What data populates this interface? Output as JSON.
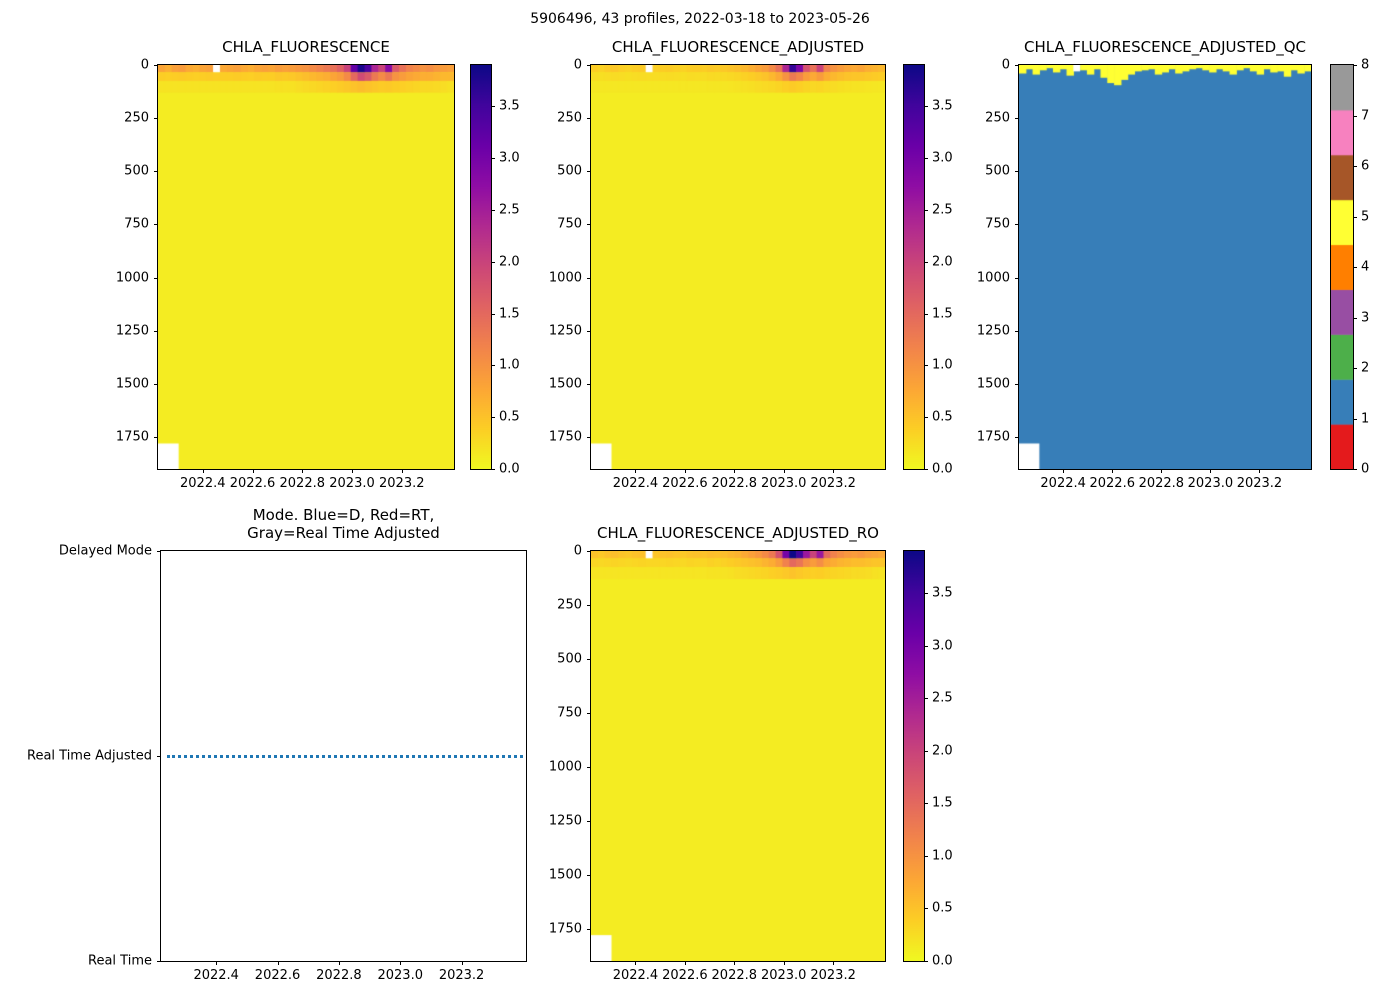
{
  "figure": {
    "title": "5906496, 43 profiles, 2022-03-18 to 2023-05-26"
  },
  "colors": {
    "background": "#ffffff",
    "plasma_r_stops": [
      "#f0f921",
      "#fcce25",
      "#fca636",
      "#f2844b",
      "#e16462",
      "#cc4778",
      "#b12a90",
      "#8f0da4",
      "#6a00a8",
      "#41049d",
      "#0d0887"
    ],
    "set1": [
      "#e41a1c",
      "#377eb8",
      "#4daf4a",
      "#984ea3",
      "#ff7f00",
      "#ffff33",
      "#a65628",
      "#f781bf",
      "#999999"
    ],
    "mode_line": "#1f77b4"
  },
  "chart_data": [
    {
      "id": "chla_fluorescence",
      "type": "heatmap",
      "title": "CHLA_FLUORESCENCE",
      "xlabel": "",
      "ylabel": "",
      "x_range": [
        2022.22,
        2023.41
      ],
      "x_tick_values": [
        2022.4,
        2022.6,
        2022.8,
        2023.0,
        2023.2
      ],
      "x_tick_labels": [
        "2022.4",
        "2022.6",
        "2022.8",
        "2023.0",
        "2023.2"
      ],
      "y_range": [
        0,
        1900
      ],
      "y_tick_values": [
        0,
        250,
        500,
        750,
        1000,
        1250,
        1500,
        1750
      ],
      "colorbar": {
        "style": "gradient",
        "cmap": "plasma_r",
        "vmin": 0,
        "vmax": 3.9,
        "tick_values": [
          0,
          0.5,
          1.0,
          1.5,
          2.0,
          2.5,
          3.0,
          3.5
        ],
        "tick_labels": [
          "0.0",
          "0.5",
          "1.0",
          "1.5",
          "2.0",
          "2.5",
          "3.0",
          "3.5"
        ]
      },
      "n_profiles": 43,
      "base_value": 0.12,
      "bands": {
        "depth_ranges": [
          [
            0,
            35
          ],
          [
            35,
            75
          ],
          [
            75,
            130
          ]
        ],
        "values": [
          [
            0.8,
            0.7,
            0.85,
            0.9,
            0.75,
            0.7,
            0.8,
            0.85,
            null,
            0.75,
            0.8,
            0.85,
            0.75,
            0.7,
            0.8,
            0.85,
            0.8,
            0.9,
            0.85,
            0.9,
            0.95,
            1.0,
            1.1,
            1.2,
            1.3,
            1.4,
            1.6,
            2.0,
            3.2,
            3.8,
            3.4,
            2.4,
            2.0,
            2.8,
            1.7,
            1.4,
            1.2,
            1.1,
            1.0,
            1.05,
            0.95,
            0.9,
            0.85
          ],
          [
            0.4,
            0.38,
            0.4,
            0.42,
            0.4,
            0.38,
            0.4,
            0.42,
            0.4,
            0.4,
            0.4,
            0.42,
            0.4,
            0.38,
            0.42,
            0.4,
            0.4,
            0.45,
            0.43,
            0.45,
            0.5,
            0.55,
            0.6,
            0.65,
            0.7,
            0.8,
            0.9,
            1.1,
            1.5,
            1.9,
            1.7,
            1.3,
            1.1,
            1.3,
            1.0,
            0.9,
            0.8,
            0.75,
            0.7,
            0.7,
            0.65,
            0.6,
            0.6
          ],
          [
            0.2,
            0.2,
            0.2,
            0.2,
            0.2,
            0.2,
            0.2,
            0.2,
            0.2,
            0.2,
            0.2,
            0.2,
            0.2,
            0.2,
            0.2,
            0.2,
            0.2,
            0.22,
            0.22,
            0.22,
            0.25,
            0.28,
            0.3,
            0.33,
            0.35,
            0.38,
            0.42,
            0.46,
            0.5,
            0.55,
            0.5,
            0.46,
            0.42,
            0.44,
            0.4,
            0.38,
            0.35,
            0.33,
            0.3,
            0.3,
            0.28,
            0.25,
            0.22
          ]
        ]
      },
      "missing": {
        "bottom_left": {
          "profiles_to": 2,
          "depth_from": 1780
        }
      }
    },
    {
      "id": "chla_fluorescence_adjusted",
      "type": "heatmap",
      "title": "CHLA_FLUORESCENCE_ADJUSTED",
      "xlabel": "",
      "ylabel": "",
      "x_range": [
        2022.22,
        2023.41
      ],
      "x_tick_values": [
        2022.4,
        2022.6,
        2022.8,
        2023.0,
        2023.2
      ],
      "x_tick_labels": [
        "2022.4",
        "2022.6",
        "2022.8",
        "2023.0",
        "2023.2"
      ],
      "y_range": [
        0,
        1900
      ],
      "y_tick_values": [
        0,
        250,
        500,
        750,
        1000,
        1250,
        1500,
        1750
      ],
      "colorbar": {
        "style": "gradient",
        "cmap": "plasma_r",
        "vmin": 0,
        "vmax": 3.9,
        "tick_values": [
          0,
          0.5,
          1.0,
          1.5,
          2.0,
          2.5,
          3.0,
          3.5
        ],
        "tick_labels": [
          "0.0",
          "0.5",
          "1.0",
          "1.5",
          "2.0",
          "2.5",
          "3.0",
          "3.5"
        ]
      },
      "n_profiles": 43,
      "base_value": 0.12,
      "bands": {
        "depth_ranges": [
          [
            0,
            35
          ],
          [
            35,
            75
          ],
          [
            75,
            130
          ]
        ],
        "values": [
          [
            0.4,
            0.35,
            0.42,
            0.45,
            0.38,
            0.35,
            0.4,
            0.42,
            null,
            0.38,
            0.4,
            0.42,
            0.38,
            0.35,
            0.4,
            0.42,
            0.4,
            0.45,
            0.43,
            0.45,
            0.5,
            0.55,
            0.6,
            0.7,
            0.8,
            0.9,
            1.1,
            1.4,
            2.4,
            3.6,
            2.9,
            1.8,
            1.4,
            2.0,
            1.2,
            1.0,
            0.9,
            0.8,
            0.75,
            0.8,
            0.7,
            0.65,
            0.6
          ],
          [
            0.25,
            0.24,
            0.25,
            0.26,
            0.25,
            0.24,
            0.25,
            0.26,
            0.25,
            0.25,
            0.25,
            0.26,
            0.25,
            0.24,
            0.26,
            0.25,
            0.25,
            0.28,
            0.27,
            0.28,
            0.3,
            0.33,
            0.36,
            0.4,
            0.45,
            0.5,
            0.6,
            0.75,
            1.0,
            1.3,
            1.15,
            0.9,
            0.75,
            0.9,
            0.7,
            0.6,
            0.55,
            0.5,
            0.48,
            0.48,
            0.45,
            0.42,
            0.4
          ],
          [
            0.16,
            0.16,
            0.16,
            0.16,
            0.16,
            0.16,
            0.16,
            0.16,
            0.16,
            0.16,
            0.16,
            0.16,
            0.16,
            0.16,
            0.16,
            0.16,
            0.16,
            0.17,
            0.17,
            0.17,
            0.18,
            0.2,
            0.22,
            0.24,
            0.26,
            0.28,
            0.3,
            0.34,
            0.38,
            0.42,
            0.38,
            0.34,
            0.3,
            0.32,
            0.28,
            0.26,
            0.24,
            0.22,
            0.2,
            0.2,
            0.18,
            0.17,
            0.16
          ]
        ]
      },
      "missing": {
        "bottom_left": {
          "profiles_to": 2,
          "depth_from": 1780
        }
      }
    },
    {
      "id": "chla_fluorescence_adjusted_qc",
      "type": "heatmap_qc",
      "title": "CHLA_FLUORESCENCE_ADJUSTED_QC",
      "xlabel": "",
      "ylabel": "",
      "x_range": [
        2022.22,
        2023.41
      ],
      "x_tick_values": [
        2022.4,
        2022.6,
        2022.8,
        2023.0,
        2023.2
      ],
      "x_tick_labels": [
        "2022.4",
        "2022.6",
        "2022.8",
        "2023.0",
        "2023.2"
      ],
      "y_range": [
        0,
        1900
      ],
      "y_tick_values": [
        0,
        250,
        500,
        750,
        1000,
        1250,
        1500,
        1750
      ],
      "colorbar": {
        "style": "discrete",
        "cmap": "Set1",
        "n_segments": 9,
        "tick_values": [
          0,
          1,
          2,
          3,
          4,
          5,
          6,
          7,
          8
        ],
        "tick_labels": [
          "0",
          "1",
          "2",
          "3",
          "4",
          "5",
          "6",
          "7",
          "8"
        ]
      },
      "n_profiles": 43,
      "body_qc": 1,
      "surface_qc": 5,
      "surface_depths": [
        40,
        20,
        45,
        25,
        15,
        35,
        20,
        50,
        0,
        25,
        45,
        20,
        60,
        85,
        95,
        70,
        45,
        30,
        25,
        20,
        45,
        35,
        20,
        40,
        30,
        20,
        15,
        25,
        35,
        20,
        30,
        45,
        25,
        15,
        30,
        45,
        20,
        35,
        30,
        55,
        25,
        40,
        30
      ],
      "missing": {
        "bottom_left": {
          "profiles_to": 2,
          "depth_from": 1780
        },
        "surface_gaps": [
          {
            "profile": 8,
            "depth_to": 30
          }
        ]
      }
    },
    {
      "id": "mode",
      "type": "categorical_line",
      "title_lines": [
        "Mode. Blue=D, Red=RT,",
        "Gray=Real Time Adjusted"
      ],
      "x_range": [
        2022.22,
        2023.41
      ],
      "x_tick_values": [
        2022.4,
        2022.6,
        2022.8,
        2023.0,
        2023.2
      ],
      "x_tick_labels": [
        "2022.4",
        "2022.6",
        "2022.8",
        "2023.0",
        "2023.2"
      ],
      "y_categories": [
        "Delayed Mode",
        "Real Time Adjusted",
        "Real Time"
      ],
      "line": {
        "y_category": "Real Time Adjusted",
        "x_start": 2022.24,
        "x_end": 2023.4,
        "color": "#1f77b4",
        "style": "dotted"
      }
    },
    {
      "id": "chla_fluorescence_adjusted_ro",
      "type": "heatmap",
      "title": "CHLA_FLUORESCENCE_ADJUSTED_RO",
      "xlabel": "",
      "ylabel": "",
      "x_range": [
        2022.22,
        2023.41
      ],
      "x_tick_values": [
        2022.4,
        2022.6,
        2022.8,
        2023.0,
        2023.2
      ],
      "x_tick_labels": [
        "2022.4",
        "2022.6",
        "2022.8",
        "2023.0",
        "2023.2"
      ],
      "y_range": [
        0,
        1900
      ],
      "y_tick_values": [
        0,
        250,
        500,
        750,
        1000,
        1250,
        1500,
        1750
      ],
      "colorbar": {
        "style": "gradient",
        "cmap": "plasma_r",
        "vmin": 0,
        "vmax": 3.9,
        "tick_values": [
          0,
          0.5,
          1.0,
          1.5,
          2.0,
          2.5,
          3.0,
          3.5
        ],
        "tick_labels": [
          "0.0",
          "0.5",
          "1.0",
          "1.5",
          "2.0",
          "2.5",
          "3.0",
          "3.5"
        ]
      },
      "n_profiles": 43,
      "base_value": 0.12,
      "bands": {
        "depth_ranges": [
          [
            0,
            35
          ],
          [
            35,
            75
          ],
          [
            75,
            130
          ]
        ],
        "values": [
          [
            0.5,
            0.45,
            0.52,
            0.55,
            0.48,
            0.45,
            0.5,
            0.52,
            null,
            0.48,
            0.5,
            0.52,
            0.48,
            0.45,
            0.5,
            0.52,
            0.5,
            0.55,
            0.53,
            0.55,
            0.6,
            0.65,
            0.75,
            0.85,
            0.95,
            1.1,
            1.3,
            1.8,
            3.0,
            3.9,
            3.5,
            2.6,
            2.0,
            2.6,
            1.5,
            1.2,
            1.05,
            0.95,
            0.9,
            0.95,
            0.85,
            0.8,
            0.75
          ],
          [
            0.32,
            0.3,
            0.32,
            0.34,
            0.32,
            0.3,
            0.32,
            0.34,
            0.32,
            0.32,
            0.32,
            0.34,
            0.32,
            0.3,
            0.34,
            0.32,
            0.32,
            0.36,
            0.34,
            0.36,
            0.4,
            0.44,
            0.48,
            0.52,
            0.56,
            0.64,
            0.72,
            0.9,
            1.2,
            1.5,
            1.35,
            1.05,
            0.9,
            1.05,
            0.8,
            0.72,
            0.64,
            0.6,
            0.56,
            0.56,
            0.52,
            0.48,
            0.48
          ],
          [
            0.18,
            0.18,
            0.18,
            0.18,
            0.18,
            0.18,
            0.18,
            0.18,
            0.18,
            0.18,
            0.18,
            0.18,
            0.18,
            0.18,
            0.18,
            0.18,
            0.18,
            0.2,
            0.2,
            0.2,
            0.22,
            0.25,
            0.27,
            0.3,
            0.32,
            0.34,
            0.38,
            0.41,
            0.45,
            0.5,
            0.45,
            0.41,
            0.38,
            0.4,
            0.36,
            0.34,
            0.32,
            0.3,
            0.27,
            0.27,
            0.25,
            0.22,
            0.2
          ]
        ]
      },
      "missing": {
        "bottom_left": {
          "profiles_to": 2,
          "depth_from": 1780
        }
      }
    }
  ]
}
